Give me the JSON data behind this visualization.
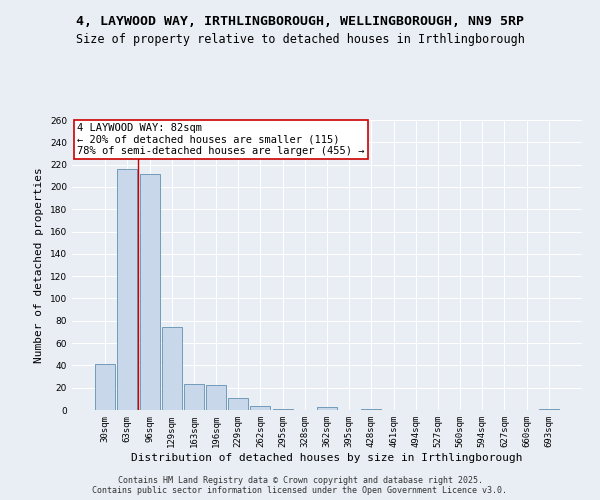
{
  "title_line1": "4, LAYWOOD WAY, IRTHLINGBOROUGH, WELLINGBOROUGH, NN9 5RP",
  "title_line2": "Size of property relative to detached houses in Irthlingborough",
  "xlabel": "Distribution of detached houses by size in Irthlingborough",
  "ylabel": "Number of detached properties",
  "categories": [
    "30sqm",
    "63sqm",
    "96sqm",
    "129sqm",
    "163sqm",
    "196sqm",
    "229sqm",
    "262sqm",
    "295sqm",
    "328sqm",
    "362sqm",
    "395sqm",
    "428sqm",
    "461sqm",
    "494sqm",
    "527sqm",
    "560sqm",
    "594sqm",
    "627sqm",
    "660sqm",
    "693sqm"
  ],
  "values": [
    41,
    216,
    212,
    74,
    23,
    22,
    11,
    4,
    1,
    0,
    3,
    0,
    1,
    0,
    0,
    0,
    0,
    0,
    0,
    0,
    1
  ],
  "bar_color": "#c8d8ea",
  "bar_edge_color": "#6090b0",
  "vline_x": 1.5,
  "vline_color": "#cc0000",
  "annotation_text": "4 LAYWOOD WAY: 82sqm\n← 20% of detached houses are smaller (115)\n78% of semi-detached houses are larger (455) →",
  "annotation_box_color": "#ffffff",
  "annotation_box_edge": "#cc0000",
  "ylim": [
    0,
    260
  ],
  "yticks": [
    0,
    20,
    40,
    60,
    80,
    100,
    120,
    140,
    160,
    180,
    200,
    220,
    240,
    260
  ],
  "background_color": "#e8eef4",
  "grid_color": "#ffffff",
  "footer_line1": "Contains HM Land Registry data © Crown copyright and database right 2025.",
  "footer_line2": "Contains public sector information licensed under the Open Government Licence v3.0.",
  "title_fontsize": 9.5,
  "subtitle_fontsize": 8.5,
  "axis_label_fontsize": 8,
  "tick_fontsize": 6.5,
  "annotation_fontsize": 7.5,
  "footer_fontsize": 6
}
